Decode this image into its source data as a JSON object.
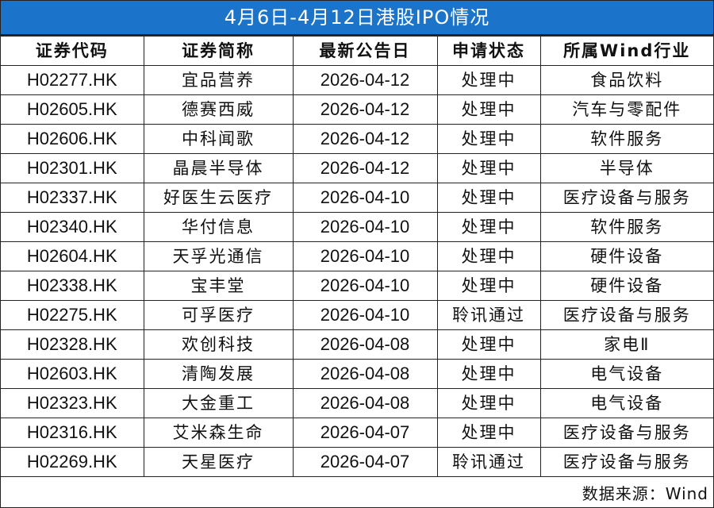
{
  "title": "4月6日-4月12日港股IPO情况",
  "columns": [
    "证券代码",
    "证券简称",
    "最新公告日",
    "申请状态",
    "所属Wind行业"
  ],
  "rows": [
    [
      "H02277.HK",
      "宜品营养",
      "2026-04-12",
      "处理中",
      "食品饮料"
    ],
    [
      "H02605.HK",
      "德赛西威",
      "2026-04-12",
      "处理中",
      "汽车与零配件"
    ],
    [
      "H02606.HK",
      "中科闻歌",
      "2026-04-12",
      "处理中",
      "软件服务"
    ],
    [
      "H02301.HK",
      "晶晨半导体",
      "2026-04-12",
      "处理中",
      "半导体"
    ],
    [
      "H02337.HK",
      "好医生云医疗",
      "2026-04-10",
      "处理中",
      "医疗设备与服务"
    ],
    [
      "H02340.HK",
      "华付信息",
      "2026-04-10",
      "处理中",
      "软件服务"
    ],
    [
      "H02604.HK",
      "天孚光通信",
      "2026-04-10",
      "处理中",
      "硬件设备"
    ],
    [
      "H02338.HK",
      "宝丰堂",
      "2026-04-10",
      "处理中",
      "硬件设备"
    ],
    [
      "H02275.HK",
      "可孚医疗",
      "2026-04-10",
      "聆讯通过",
      "医疗设备与服务"
    ],
    [
      "H02328.HK",
      "欢创科技",
      "2026-04-08",
      "处理中",
      "家电Ⅱ"
    ],
    [
      "H02603.HK",
      "清陶发展",
      "2026-04-08",
      "处理中",
      "电气设备"
    ],
    [
      "H02323.HK",
      "大金重工",
      "2026-04-08",
      "处理中",
      "电气设备"
    ],
    [
      "H02316.HK",
      "艾米森生命",
      "2026-04-07",
      "处理中",
      "医疗设备与服务"
    ],
    [
      "H02269.HK",
      "天星医疗",
      "2026-04-07",
      "聆讯通过",
      "医疗设备与服务"
    ]
  ],
  "footer": "数据来源：Wind",
  "colors": {
    "title_bg": "#1b74c9",
    "title_text": "#ffffff"
  }
}
